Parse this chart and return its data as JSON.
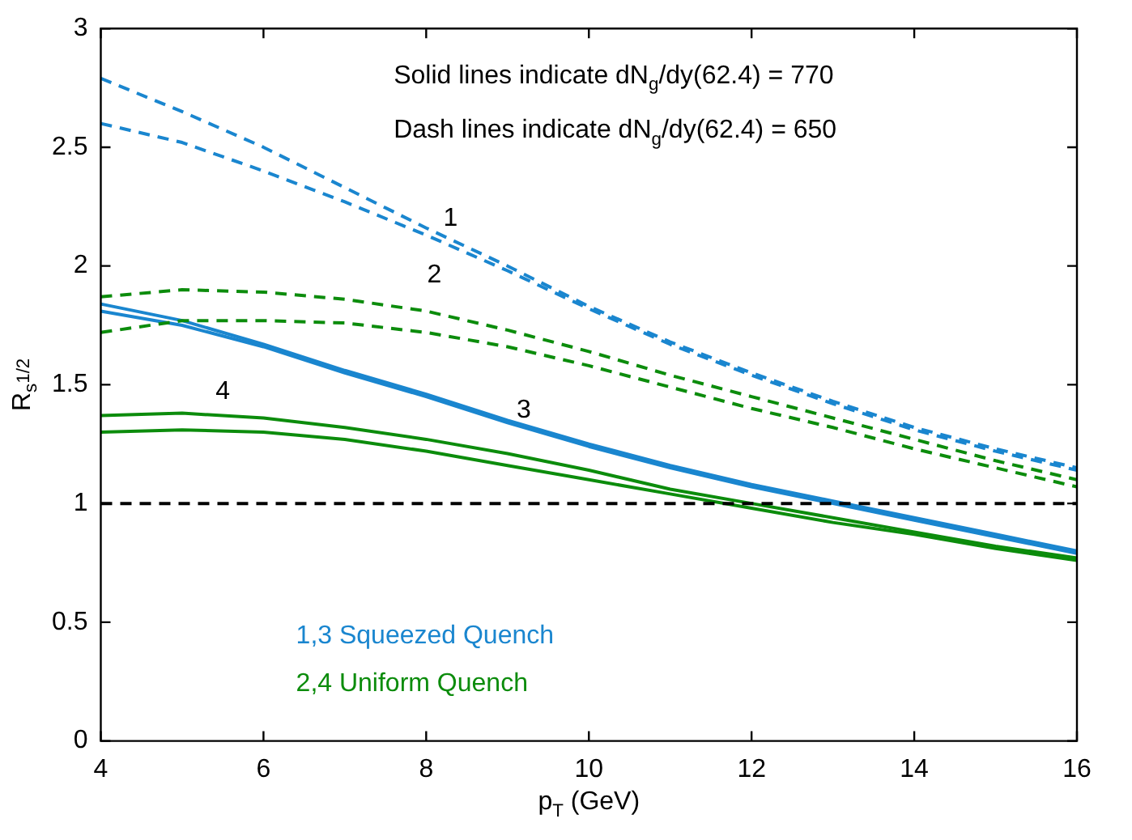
{
  "chart_data": {
    "type": "line",
    "xlabel": "p$_{T}$ (GeV)",
    "ylabel": "R$_{s}$$^{1/2}$",
    "x": [
      4,
      5,
      6,
      7,
      8,
      9,
      10,
      11,
      12,
      13,
      14,
      15,
      16
    ],
    "xlim": [
      4,
      16
    ],
    "xticks": [
      4,
      6,
      8,
      10,
      12,
      14,
      16
    ],
    "ylim": [
      0,
      3
    ],
    "yticks": [
      0,
      0.5,
      1,
      1.5,
      2,
      2.5,
      3
    ],
    "grid": false,
    "legend": false,
    "marker": "none",
    "series": [
      {
        "color": "#1a86cf",
        "line_style": "dashed",
        "values": [
          2.79,
          2.65,
          2.5,
          2.33,
          2.16,
          2.0,
          1.83,
          1.68,
          1.55,
          1.43,
          1.32,
          1.23,
          1.15
        ]
      },
      {
        "color": "#1a86cf",
        "line_style": "dashed",
        "values": [
          2.6,
          2.52,
          2.4,
          2.27,
          2.13,
          1.98,
          1.82,
          1.67,
          1.54,
          1.42,
          1.31,
          1.22,
          1.14
        ]
      },
      {
        "color": "#0c8c0c",
        "line_style": "dashed",
        "values": [
          1.87,
          1.9,
          1.89,
          1.86,
          1.81,
          1.73,
          1.64,
          1.54,
          1.45,
          1.36,
          1.27,
          1.18,
          1.1
        ]
      },
      {
        "color": "#0c8c0c",
        "line_style": "dashed",
        "values": [
          1.72,
          1.77,
          1.77,
          1.76,
          1.72,
          1.66,
          1.58,
          1.49,
          1.4,
          1.32,
          1.23,
          1.15,
          1.07
        ]
      },
      {
        "color": "#1a86cf",
        "line_style": "solid",
        "values": [
          1.84,
          1.77,
          1.67,
          1.56,
          1.46,
          1.35,
          1.25,
          1.16,
          1.08,
          1.01,
          0.94,
          0.87,
          0.8
        ]
      },
      {
        "color": "#1a86cf",
        "line_style": "solid",
        "values": [
          1.81,
          1.75,
          1.66,
          1.55,
          1.45,
          1.34,
          1.24,
          1.15,
          1.07,
          1.0,
          0.93,
          0.86,
          0.79
        ]
      },
      {
        "color": "#0c8c0c",
        "line_style": "solid",
        "values": [
          1.37,
          1.38,
          1.36,
          1.32,
          1.27,
          1.21,
          1.14,
          1.06,
          1.0,
          0.94,
          0.88,
          0.82,
          0.77
        ]
      },
      {
        "color": "#0c8c0c",
        "line_style": "solid",
        "values": [
          1.3,
          1.31,
          1.3,
          1.27,
          1.22,
          1.16,
          1.1,
          1.04,
          0.98,
          0.92,
          0.87,
          0.81,
          0.76
        ]
      }
    ],
    "ref_lines": [
      {
        "axis": "y",
        "value": 1,
        "color": "#000000",
        "line_style": "dashed"
      }
    ],
    "annotations": [
      "Solid lines indicate dN$_{g}$/dy(62.4) = 770",
      "Dash lines indicate dN$_{g}$/dy(62.4) = 650",
      "1,3 Squeezed Quench",
      "2,4 Uniform Quench",
      "1",
      "2",
      "3",
      "4"
    ]
  }
}
